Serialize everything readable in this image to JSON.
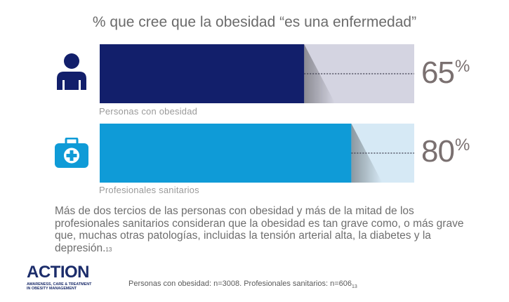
{
  "chart_data": {
    "type": "bar",
    "orientation": "horizontal",
    "title": "% que cree que la obesidad “es una enfermedad”",
    "categories": [
      "Personas con obesidad",
      "Profesionales sanitarios"
    ],
    "values": [
      65,
      80
    ],
    "value_labels": [
      "65",
      "80"
    ],
    "unit": "%",
    "xlim": [
      0,
      100
    ],
    "colors": {
      "bar": [
        "#121f6b",
        "#0f9bd7"
      ],
      "track": [
        "#d4d4e1",
        "#d6e9f5"
      ]
    },
    "icons": [
      "person-icon",
      "medical-kit-icon"
    ],
    "grid": false,
    "legend": "none"
  },
  "body": {
    "text": "Más de dos tercios de las personas con obesidad y más de la mitad de los profesionales sanitarios consideran que la obesidad es tan grave como, o más grave que, muchas otras patologías, incluidas la tensión arterial alta, la diabetes y la depresión.",
    "ref": "13"
  },
  "logo": {
    "word": "ACTION",
    "tagline": [
      "AWARENESS, CARE & TREATMENT",
      "IN OBESITY MANAGEMENT"
    ]
  },
  "footnote": {
    "text": "Personas con obesidad: n=3008. Profesionales sanitarios: n=606",
    "ref": "13"
  }
}
